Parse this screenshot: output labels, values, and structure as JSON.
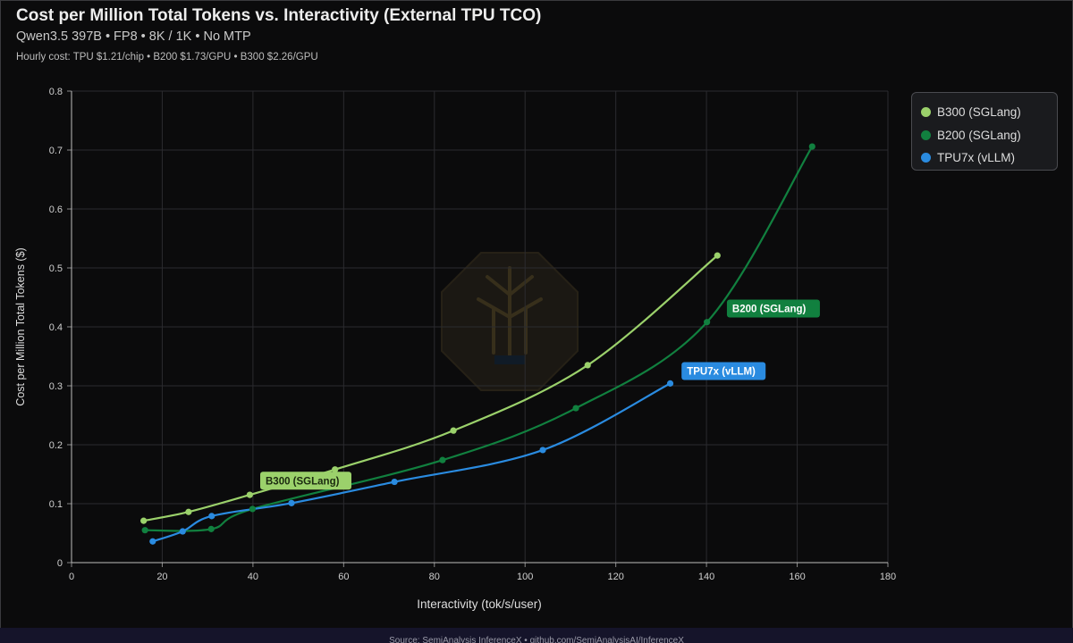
{
  "header": {
    "title": "Cost per Million Total Tokens vs. Interactivity (External TPU TCO)",
    "subtitle": "Qwen3.5 397B • FP8 • 8K / 1K • No MTP",
    "note": "Hourly cost: TPU $1.21/chip • B200 $1.73/GPU • B300 $2.26/GPU"
  },
  "footer": {
    "source": "Source: SemiAnalysis InferenceX • github.com/SemiAnalysisAI/InferenceX"
  },
  "chart_data": {
    "type": "line",
    "xlabel": "Interactivity (tok/s/user)",
    "ylabel": "Cost per Million Total Tokens ($)",
    "xlim": [
      0,
      180
    ],
    "ylim": [
      0,
      0.8
    ],
    "xticks": [
      "0",
      "20",
      "40",
      "60",
      "80",
      "100",
      "120",
      "140",
      "160",
      "180"
    ],
    "yticks": [
      "0",
      "0.1",
      "0.2",
      "0.3",
      "0.4",
      "0.5",
      "0.6",
      "0.7",
      "0.8"
    ],
    "grid": true,
    "legend_position": "top-right",
    "series": [
      {
        "name": "B300 (SGLang)",
        "color": "#9bd16b",
        "x": [
          15.9,
          25.8,
          39.3,
          58.1,
          84.2,
          113.8,
          142.4
        ],
        "y": [
          0.071,
          0.086,
          0.115,
          0.158,
          0.224,
          0.335,
          0.521
        ]
      },
      {
        "name": "B200 (SGLang)",
        "color": "#11803f",
        "x": [
          16.2,
          30.8,
          39.9,
          81.8,
          111.2,
          140.1,
          163.3
        ],
        "y": [
          0.055,
          0.057,
          0.091,
          0.174,
          0.262,
          0.408,
          0.706
        ]
      },
      {
        "name": "TPU7x (vLLM)",
        "color": "#2a8be0",
        "x": [
          17.9,
          24.5,
          30.9,
          48.5,
          71.2,
          103.9,
          132.0
        ],
        "y": [
          0.036,
          0.053,
          0.079,
          0.101,
          0.137,
          0.191,
          0.304
        ]
      }
    ],
    "annotations": [
      "B300 (SGLang)",
      "B200 (SGLang)",
      "TPU7x (vLLM)"
    ]
  }
}
